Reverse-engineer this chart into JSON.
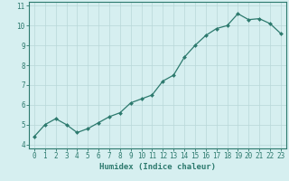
{
  "x": [
    0,
    1,
    2,
    3,
    4,
    5,
    6,
    7,
    8,
    9,
    10,
    11,
    12,
    13,
    14,
    15,
    16,
    17,
    18,
    19,
    20,
    21,
    22,
    23
  ],
  "y": [
    4.4,
    5.0,
    5.3,
    5.0,
    4.6,
    4.8,
    5.1,
    5.4,
    5.6,
    6.1,
    6.3,
    6.5,
    7.2,
    7.5,
    8.4,
    9.0,
    9.5,
    9.85,
    10.0,
    10.6,
    10.3,
    10.35,
    10.1,
    9.6
  ],
  "line_color": "#2d7a6e",
  "marker": "D",
  "marker_size": 2.0,
  "bg_color": "#d6eff0",
  "grid_color": "#b8d8d8",
  "xlabel": "Humidex (Indice chaleur)",
  "xlim": [
    -0.5,
    23.5
  ],
  "ylim": [
    3.8,
    11.2
  ],
  "yticks": [
    4,
    5,
    6,
    7,
    8,
    9,
    10,
    11
  ],
  "xticks": [
    0,
    1,
    2,
    3,
    4,
    5,
    6,
    7,
    8,
    9,
    10,
    11,
    12,
    13,
    14,
    15,
    16,
    17,
    18,
    19,
    20,
    21,
    22,
    23
  ],
  "font_color": "#2d7a6e",
  "tick_fontsize": 5.5,
  "label_fontsize": 6.5
}
